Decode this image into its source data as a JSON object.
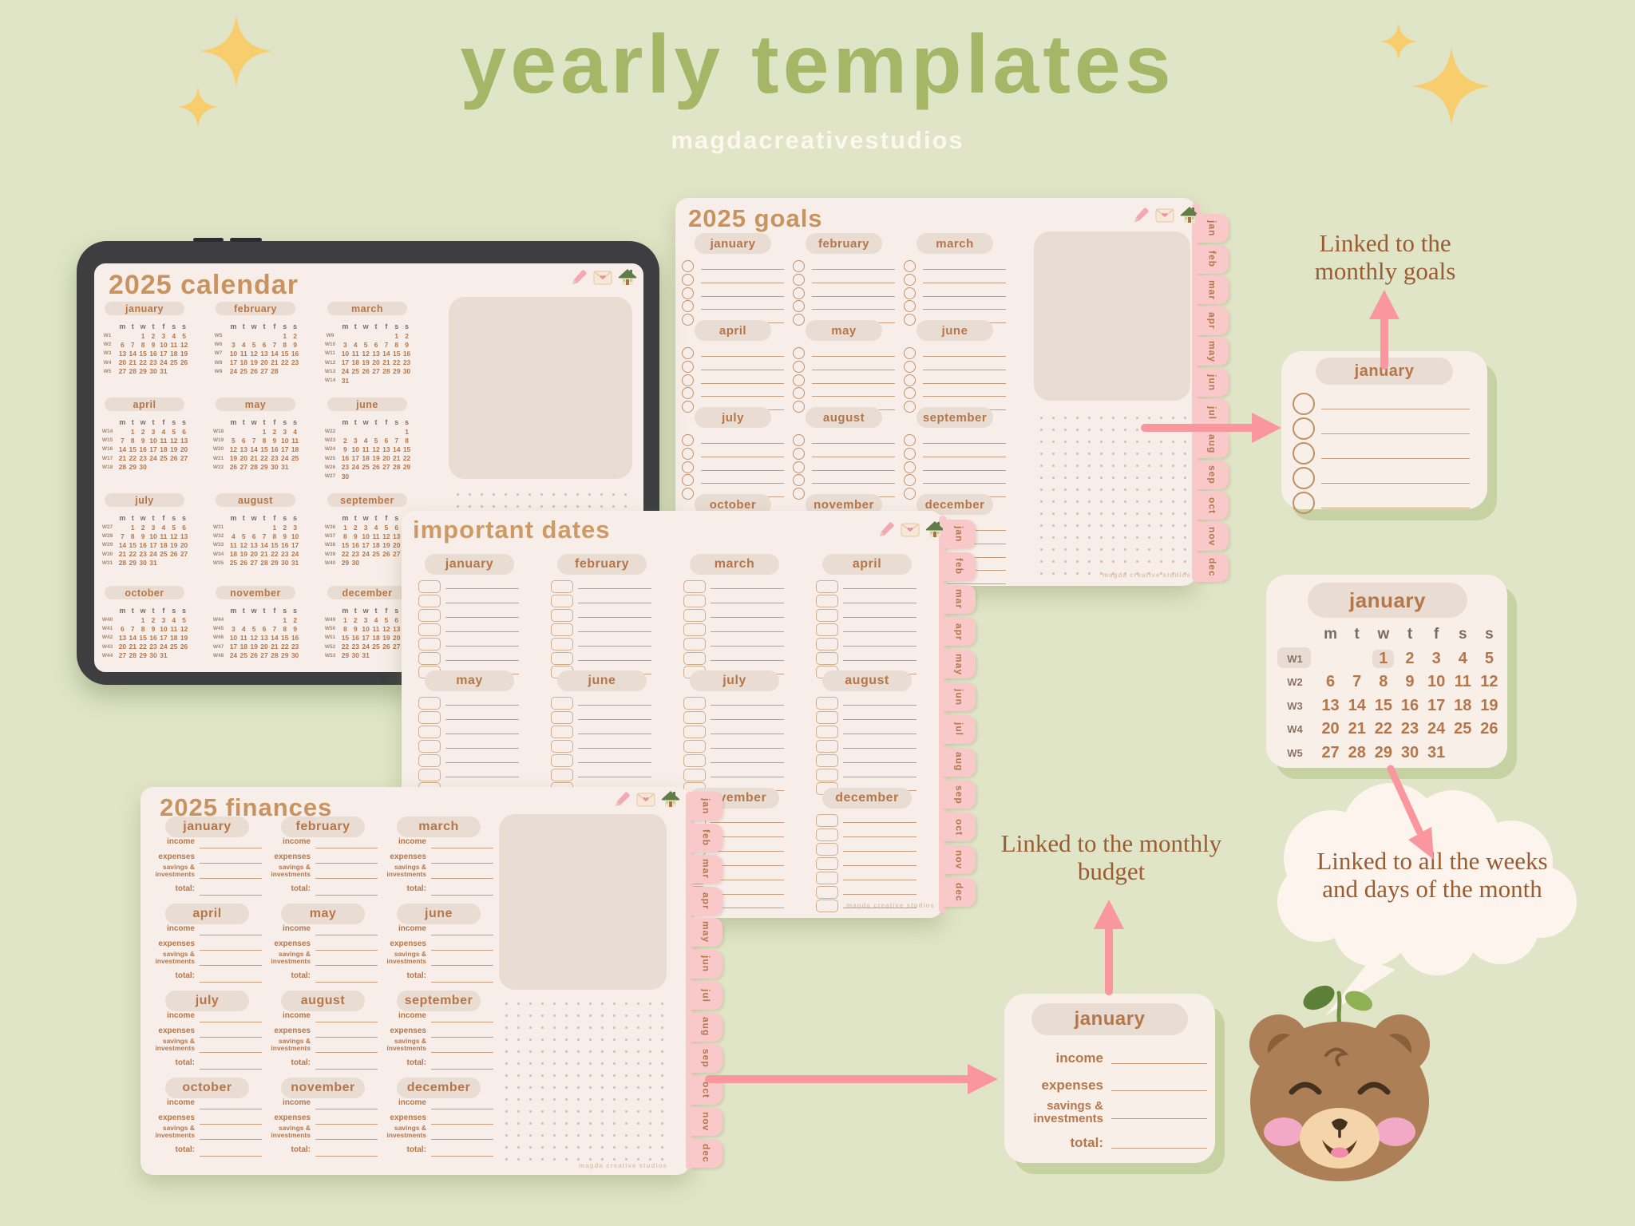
{
  "page": {
    "title": "yearly templates",
    "subtitle": "magdacreativestudios"
  },
  "colors": {
    "background": "#dfe5c6",
    "title_green": "#a5b766",
    "sparkle_gold": "#f8cd6e",
    "sheet_cream": "#f8eee9",
    "accent_brown": "#b5764a",
    "title_brown": "#c9935f",
    "arrow_pink": "#f9969e",
    "tab_pink": "#f9c9ca",
    "shadow_green": "#c7d2a2"
  },
  "icons": [
    "pencil-icon",
    "envelope-icon",
    "house-icon"
  ],
  "weekday_headers": [
    "m",
    "t",
    "w",
    "t",
    "f",
    "s",
    "s"
  ],
  "month_tabs": [
    "jan",
    "feb",
    "mar",
    "apr",
    "may",
    "jun",
    "jul",
    "aug",
    "sep",
    "oct",
    "nov",
    "dec"
  ],
  "watermark": "magda creative studios",
  "tablet_calendar": {
    "title": "2025 calendar",
    "months": [
      {
        "name": "january",
        "weeks": [
          [
            "W1",
            "",
            "",
            "1",
            "2",
            "3",
            "4",
            "5"
          ],
          [
            "W2",
            "6",
            "7",
            "8",
            "9",
            "10",
            "11",
            "12"
          ],
          [
            "W3",
            "13",
            "14",
            "15",
            "16",
            "17",
            "18",
            "19"
          ],
          [
            "W4",
            "20",
            "21",
            "22",
            "23",
            "24",
            "25",
            "26"
          ],
          [
            "W5",
            "27",
            "28",
            "29",
            "30",
            "31",
            "",
            ""
          ]
        ]
      },
      {
        "name": "february",
        "weeks": [
          [
            "W5",
            "",
            "",
            "",
            "",
            "",
            "1",
            "2"
          ],
          [
            "W6",
            "3",
            "4",
            "5",
            "6",
            "7",
            "8",
            "9"
          ],
          [
            "W7",
            "10",
            "11",
            "12",
            "13",
            "14",
            "15",
            "16"
          ],
          [
            "W8",
            "17",
            "18",
            "19",
            "20",
            "21",
            "22",
            "23"
          ],
          [
            "W9",
            "24",
            "25",
            "26",
            "27",
            "28",
            "",
            ""
          ]
        ]
      },
      {
        "name": "march",
        "weeks": [
          [
            "W9",
            "",
            "",
            "",
            "",
            "",
            "1",
            "2"
          ],
          [
            "W10",
            "3",
            "4",
            "5",
            "6",
            "7",
            "8",
            "9"
          ],
          [
            "W11",
            "10",
            "11",
            "12",
            "13",
            "14",
            "15",
            "16"
          ],
          [
            "W12",
            "17",
            "18",
            "19",
            "20",
            "21",
            "22",
            "23"
          ],
          [
            "W13",
            "24",
            "25",
            "26",
            "27",
            "28",
            "29",
            "30"
          ],
          [
            "W14",
            "31",
            "",
            "",
            "",
            "",
            "",
            ""
          ]
        ]
      },
      {
        "name": "april",
        "weeks": [
          [
            "W14",
            "",
            "1",
            "2",
            "3",
            "4",
            "5",
            "6"
          ],
          [
            "W15",
            "7",
            "8",
            "9",
            "10",
            "11",
            "12",
            "13"
          ],
          [
            "W16",
            "14",
            "15",
            "16",
            "17",
            "18",
            "19",
            "20"
          ],
          [
            "W17",
            "21",
            "22",
            "23",
            "24",
            "25",
            "26",
            "27"
          ],
          [
            "W18",
            "28",
            "29",
            "30",
            "",
            "",
            "",
            ""
          ]
        ]
      },
      {
        "name": "may",
        "weeks": [
          [
            "W18",
            "",
            "",
            "",
            "1",
            "2",
            "3",
            "4"
          ],
          [
            "W19",
            "5",
            "6",
            "7",
            "8",
            "9",
            "10",
            "11"
          ],
          [
            "W20",
            "12",
            "13",
            "14",
            "15",
            "16",
            "17",
            "18"
          ],
          [
            "W21",
            "19",
            "20",
            "21",
            "22",
            "23",
            "24",
            "25"
          ],
          [
            "W22",
            "26",
            "27",
            "28",
            "29",
            "30",
            "31",
            ""
          ]
        ]
      },
      {
        "name": "june",
        "weeks": [
          [
            "W22",
            "",
            "",
            "",
            "",
            "",
            "",
            "1"
          ],
          [
            "W23",
            "2",
            "3",
            "4",
            "5",
            "6",
            "7",
            "8"
          ],
          [
            "W24",
            "9",
            "10",
            "11",
            "12",
            "13",
            "14",
            "15"
          ],
          [
            "W25",
            "16",
            "17",
            "18",
            "19",
            "20",
            "21",
            "22"
          ],
          [
            "W26",
            "23",
            "24",
            "25",
            "26",
            "27",
            "28",
            "29"
          ],
          [
            "W27",
            "30",
            "",
            "",
            "",
            "",
            "",
            ""
          ]
        ]
      },
      {
        "name": "july",
        "weeks": [
          [
            "W27",
            "",
            "1",
            "2",
            "3",
            "4",
            "5",
            "6"
          ],
          [
            "W28",
            "7",
            "8",
            "9",
            "10",
            "11",
            "12",
            "13"
          ],
          [
            "W29",
            "14",
            "15",
            "16",
            "17",
            "18",
            "19",
            "20"
          ],
          [
            "W30",
            "21",
            "22",
            "23",
            "24",
            "25",
            "26",
            "27"
          ],
          [
            "W31",
            "28",
            "29",
            "30",
            "31",
            "",
            "",
            ""
          ]
        ]
      },
      {
        "name": "august",
        "weeks": [
          [
            "W31",
            "",
            "",
            "",
            "",
            "1",
            "2",
            "3"
          ],
          [
            "W32",
            "4",
            "5",
            "6",
            "7",
            "8",
            "9",
            "10"
          ],
          [
            "W33",
            "11",
            "12",
            "13",
            "14",
            "15",
            "16",
            "17"
          ],
          [
            "W34",
            "18",
            "19",
            "20",
            "21",
            "22",
            "23",
            "24"
          ],
          [
            "W35",
            "25",
            "26",
            "27",
            "28",
            "29",
            "30",
            "31"
          ]
        ]
      },
      {
        "name": "september",
        "weeks": [
          [
            "W36",
            "1",
            "2",
            "3",
            "4",
            "5",
            "6",
            "7"
          ],
          [
            "W37",
            "8",
            "9",
            "10",
            "11",
            "12",
            "13",
            "14"
          ],
          [
            "W38",
            "15",
            "16",
            "17",
            "18",
            "19",
            "20",
            "21"
          ],
          [
            "W39",
            "22",
            "23",
            "24",
            "25",
            "26",
            "27",
            "28"
          ],
          [
            "W40",
            "29",
            "30",
            "",
            "",
            "",
            "",
            ""
          ]
        ]
      },
      {
        "name": "october",
        "weeks": [
          [
            "W40",
            "",
            "",
            "1",
            "2",
            "3",
            "4",
            "5"
          ],
          [
            "W41",
            "6",
            "7",
            "8",
            "9",
            "10",
            "11",
            "12"
          ],
          [
            "W42",
            "13",
            "14",
            "15",
            "16",
            "17",
            "18",
            "19"
          ],
          [
            "W43",
            "20",
            "21",
            "22",
            "23",
            "24",
            "25",
            "26"
          ],
          [
            "W44",
            "27",
            "28",
            "29",
            "30",
            "31",
            "",
            ""
          ]
        ]
      },
      {
        "name": "november",
        "weeks": [
          [
            "W44",
            "",
            "",
            "",
            "",
            "",
            "1",
            "2"
          ],
          [
            "W45",
            "3",
            "4",
            "5",
            "6",
            "7",
            "8",
            "9"
          ],
          [
            "W46",
            "10",
            "11",
            "12",
            "13",
            "14",
            "15",
            "16"
          ],
          [
            "W47",
            "17",
            "18",
            "19",
            "20",
            "21",
            "22",
            "23"
          ],
          [
            "W48",
            "24",
            "25",
            "26",
            "27",
            "28",
            "29",
            "30"
          ]
        ]
      },
      {
        "name": "december",
        "weeks": [
          [
            "W49",
            "1",
            "2",
            "3",
            "4",
            "5",
            "6",
            "7"
          ],
          [
            "W50",
            "8",
            "9",
            "10",
            "11",
            "12",
            "13",
            "14"
          ],
          [
            "W51",
            "15",
            "16",
            "17",
            "18",
            "19",
            "20",
            "21"
          ],
          [
            "W52",
            "22",
            "23",
            "24",
            "25",
            "26",
            "27",
            "28"
          ],
          [
            "W53",
            "29",
            "30",
            "31",
            "",
            "",
            "",
            ""
          ]
        ]
      }
    ]
  },
  "goals_page": {
    "title": "2025 goals",
    "lines_per_month": 5,
    "months": [
      "january",
      "february",
      "march",
      "april",
      "may",
      "june",
      "july",
      "august",
      "september",
      "october",
      "november",
      "december"
    ]
  },
  "important_dates_page": {
    "title": "important dates",
    "rows_per_month": 7,
    "months": [
      "january",
      "february",
      "march",
      "april",
      "may",
      "june",
      "july",
      "august",
      "september",
      "october",
      "november",
      "december"
    ]
  },
  "finances_page": {
    "title": "2025 finances",
    "months": [
      "january",
      "february",
      "march",
      "april",
      "may",
      "june",
      "july",
      "august",
      "september",
      "october",
      "november",
      "december"
    ],
    "fields": [
      [
        "income"
      ],
      [
        "expenses"
      ],
      [
        "savings &",
        "investments"
      ],
      [
        "total:"
      ]
    ]
  },
  "monthly_goals_card": {
    "month": "january",
    "lines": 5
  },
  "monthly_calendar_card": {
    "month": "january",
    "highlight_week": "W1",
    "highlight_day": "1",
    "weeks": [
      [
        "W1",
        "",
        "",
        "1",
        "2",
        "3",
        "4",
        "5"
      ],
      [
        "W2",
        "6",
        "7",
        "8",
        "9",
        "10",
        "11",
        "12"
      ],
      [
        "W3",
        "13",
        "14",
        "15",
        "16",
        "17",
        "18",
        "19"
      ],
      [
        "W4",
        "20",
        "21",
        "22",
        "23",
        "24",
        "25",
        "26"
      ],
      [
        "W5",
        "27",
        "28",
        "29",
        "30",
        "31",
        "",
        ""
      ]
    ]
  },
  "monthly_budget_card": {
    "month": "january",
    "fields": [
      [
        "income"
      ],
      [
        "expenses"
      ],
      [
        "savings &",
        "investments"
      ],
      [
        "total:"
      ]
    ]
  },
  "annotations": {
    "goals": "Linked to the monthly goals",
    "budget": "Linked to the monthly budget",
    "calendar": "Linked to all the weeks and days of the month"
  }
}
